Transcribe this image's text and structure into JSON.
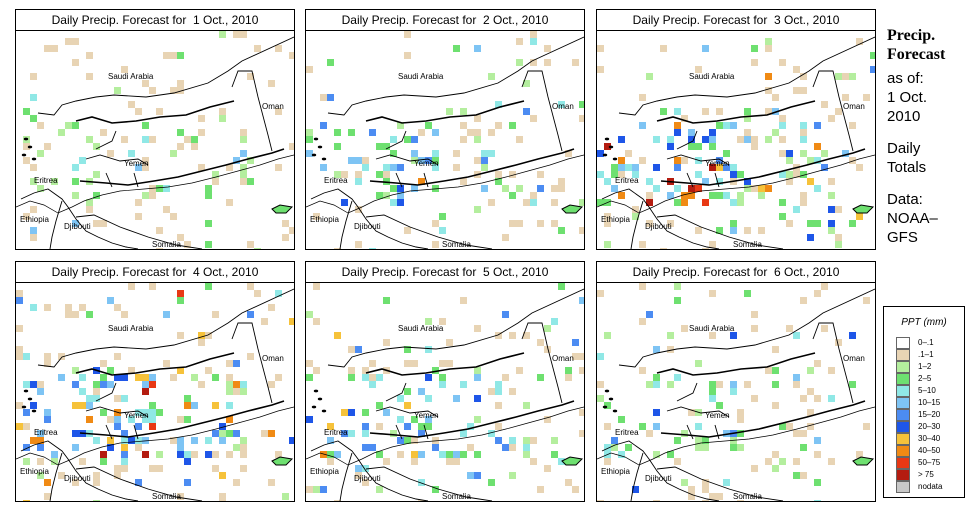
{
  "panels": [
    {
      "title": "Daily Precip. Forecast for  1 Oct., 2010",
      "intensity": 0.5
    },
    {
      "title": "Daily Precip. Forecast for  2 Oct., 2010",
      "intensity": 1.0
    },
    {
      "title": "Daily Precip. Forecast for  3 Oct., 2010",
      "intensity": 1.6
    },
    {
      "title": "Daily Precip. Forecast for  4 Oct., 2010",
      "intensity": 1.8
    },
    {
      "title": "Daily Precip. Forecast for  5 Oct., 2010",
      "intensity": 1.2
    },
    {
      "title": "Daily Precip. Forecast for  6 Oct., 2010",
      "intensity": 0.9
    }
  ],
  "map_labels": {
    "saudi_arabia": "Saudi Arabia",
    "oman": "Oman",
    "yemen": "Yemen",
    "eritrea": "Eritrea",
    "ethiopia": "Ethiopia",
    "djibouti": "Djibouti",
    "somalia": "Somalia"
  },
  "side": {
    "title_line1": "Precip.",
    "title_line2": "Forecast",
    "asof": "as of:",
    "date_line1": "1 Oct.",
    "date_line2": "2010",
    "daily1": "Daily",
    "daily2": "Totals",
    "data1": "Data:",
    "data2": "NOAA–",
    "data3": "GFS"
  },
  "legend": {
    "title": "PPT (mm)",
    "items": [
      {
        "label": "0–.1",
        "color": "#ffffff"
      },
      {
        "label": ".1–1",
        "color": "#e8d4b4"
      },
      {
        "label": "1–2",
        "color": "#b4ee9e"
      },
      {
        "label": "2–5",
        "color": "#6ee070"
      },
      {
        "label": "5–10",
        "color": "#90e8e6"
      },
      {
        "label": "10–15",
        "color": "#7ec4f4"
      },
      {
        "label": "15–20",
        "color": "#4c8cf2"
      },
      {
        "label": "20–30",
        "color": "#1e56e8"
      },
      {
        "label": "30–40",
        "color": "#f6c23a"
      },
      {
        "label": "40–50",
        "color": "#f08a14"
      },
      {
        "label": "50–75",
        "color": "#e83814"
      },
      {
        "label": "> 75",
        "color": "#b41c10"
      },
      {
        "label": "nodata",
        "color": "#c8c8c8"
      }
    ]
  }
}
